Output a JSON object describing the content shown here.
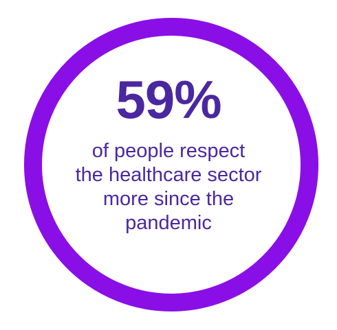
{
  "colors": {
    "ring": "#8a0fe6",
    "text": "#4b27a0",
    "background": "#ffffff"
  },
  "stat": {
    "value": "59%"
  },
  "caption": {
    "lines": [
      "of people respect",
      "the healthcare sector",
      "more since the",
      "pandemic"
    ]
  }
}
